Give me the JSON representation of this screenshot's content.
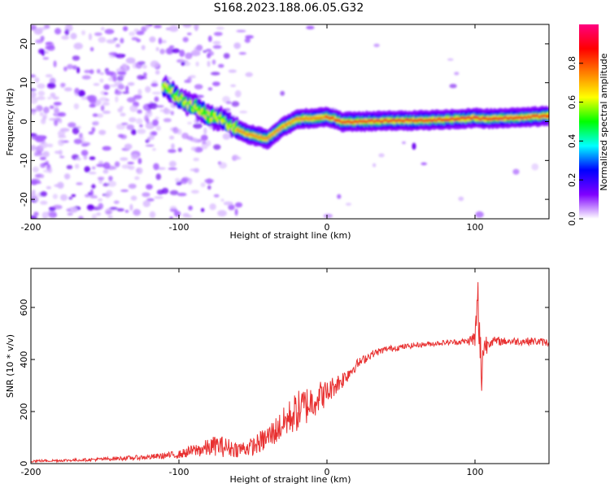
{
  "title": "S168.2023.188.06.05.G32",
  "chart_data": [
    {
      "type": "heatmap",
      "xlabel": "Height of straight line (km)",
      "ylabel": "Frequency (Hz)",
      "xlim": [
        -200,
        150
      ],
      "ylim": [
        -25,
        25
      ],
      "x_ticks": [
        -200,
        -100,
        0,
        100
      ],
      "x_tick_labels": [
        "-200",
        "-100",
        "0",
        "100"
      ],
      "y_ticks": [
        -20,
        -10,
        0,
        10,
        20
      ],
      "y_tick_labels": [
        "-20",
        "-10",
        "0",
        "10",
        "20"
      ],
      "colorbar": {
        "label": "Normalized spectral amplitude",
        "range": [
          0,
          1
        ],
        "ticks": [
          0.0,
          0.2,
          0.4,
          0.6,
          0.8
        ],
        "tick_labels": [
          "0.0",
          "0.2",
          "0.4",
          "0.6",
          "0.8"
        ],
        "colors": [
          "#ffffff",
          "#7f00ff",
          "#0000ff",
          "#00ffff",
          "#00ff00",
          "#ffff00",
          "#ff7f00",
          "#ff0000",
          "#ff0080"
        ]
      },
      "ridge": {
        "x": [
          -110,
          -100,
          -95,
          -90,
          -85,
          -80,
          -75,
          -70,
          -65,
          -60,
          -55,
          -50,
          -45,
          -40,
          -35,
          -30,
          -25,
          -20,
          -15,
          -10,
          -5,
          0,
          5,
          10,
          20,
          40,
          60,
          80,
          95,
          100,
          105,
          110,
          130,
          150
        ],
        "y": [
          9,
          6,
          5,
          4,
          3,
          1.5,
          1,
          0.5,
          -1,
          -2,
          -3,
          -3.5,
          -4,
          -4.5,
          -3,
          -1.5,
          -0.5,
          0.5,
          0.8,
          0.8,
          1,
          1.2,
          0.8,
          0,
          0,
          0.2,
          0.3,
          0.5,
          0.8,
          1,
          0.7,
          0.8,
          1,
          1.5
        ]
      },
      "noise_region_x": [
        -200,
        -60
      ]
    },
    {
      "type": "line",
      "xlabel": "Height of straight line (km)",
      "ylabel": "SNR (10 * v/v)",
      "xlim": [
        -200,
        150
      ],
      "ylim": [
        0,
        750
      ],
      "x_ticks": [
        -200,
        -100,
        0,
        100
      ],
      "x_tick_labels": [
        "-200",
        "-100",
        "0",
        "100"
      ],
      "y_ticks": [
        0,
        200,
        400,
        600
      ],
      "y_tick_labels": [
        "0",
        "200",
        "400",
        "600"
      ],
      "line_color": "#e83030",
      "series": [
        {
          "x": [
            -200,
            -180,
            -160,
            -140,
            -120,
            -100,
            -90,
            -80,
            -75,
            -70,
            -60,
            -50,
            -40,
            -30,
            -25,
            -20,
            -15,
            -10,
            -5,
            0,
            5,
            10,
            15,
            20,
            30,
            40,
            60,
            80,
            95,
            100,
            102,
            104,
            106,
            110,
            120,
            130,
            140,
            150
          ],
          "values": [
            10,
            12,
            15,
            20,
            25,
            35,
            50,
            60,
            70,
            65,
            55,
            65,
            100,
            150,
            180,
            200,
            220,
            240,
            260,
            270,
            300,
            320,
            350,
            380,
            420,
            440,
            455,
            465,
            470,
            480,
            620,
            350,
            450,
            470,
            470,
            470,
            470,
            465
          ],
          "noise_amplitude": [
            5,
            5,
            6,
            8,
            10,
            15,
            25,
            35,
            40,
            40,
            30,
            35,
            50,
            60,
            70,
            80,
            80,
            70,
            60,
            50,
            40,
            35,
            30,
            20,
            15,
            12,
            10,
            10,
            12,
            40,
            120,
            150,
            60,
            20,
            15,
            15,
            15,
            15
          ]
        }
      ]
    }
  ]
}
